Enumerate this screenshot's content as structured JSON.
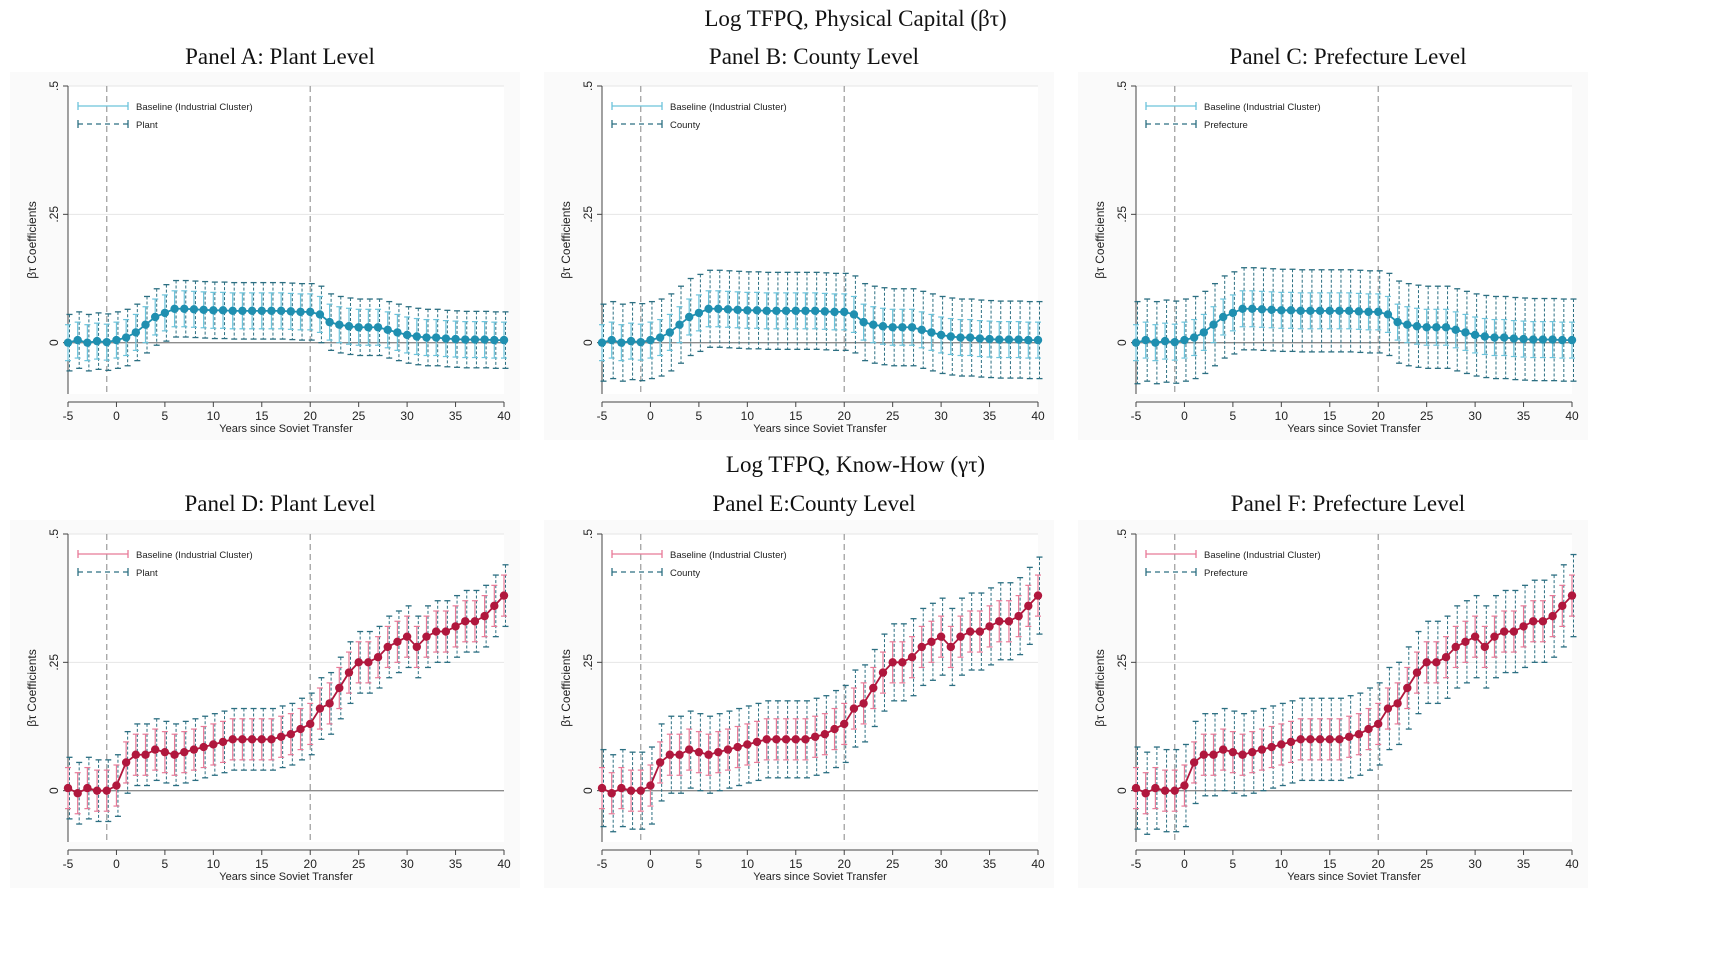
{
  "section_titles": {
    "top": "Log TFPQ, Physical Capital (βτ)",
    "bottom": "Log TFPQ, Know-How (γτ)"
  },
  "panels": [
    {
      "title": "Panel A: Plant Level",
      "series2_label": "Plant"
    },
    {
      "title": "Panel B: County Level",
      "series2_label": "County"
    },
    {
      "title": "Panel C: Prefecture Level",
      "series2_label": "Prefecture"
    },
    {
      "title": "Panel D: Plant Level",
      "series2_label": "Plant"
    },
    {
      "title": "Panel E:County Level",
      "series2_label": "County"
    },
    {
      "title": "Panel F: Prefecture Level",
      "series2_label": "Prefecture"
    }
  ],
  "colors": {
    "physical_capital": "#1f8fb0",
    "physical_capital_ci": "#6cc3db",
    "know_how": "#b0173d",
    "know_how_ci": "#e87a98",
    "alt_ci": "#2c6f82",
    "zero_line": "#8c8c8c",
    "vline": "#9a9a9a",
    "grid": "#e6e6e6"
  },
  "chart_data": [
    {
      "type": "line",
      "title": "Panel A: Plant Level",
      "xlabel": "Years since Soviet Transfer",
      "ylabel": "βτ Coefficients",
      "xlim": [
        -5,
        40
      ],
      "ylim": [
        -0.1,
        0.5
      ],
      "xticks": [
        "-5",
        "0",
        "5",
        "10",
        "15",
        "20",
        "25",
        "30",
        "35",
        "40"
      ],
      "yticks": [
        "0",
        ".25",
        ".5"
      ],
      "vlines": [
        -1,
        20
      ],
      "legend": "top-left",
      "x": [
        -5,
        -4,
        -3,
        -2,
        -1,
        0,
        1,
        2,
        3,
        4,
        5,
        6,
        7,
        8,
        9,
        10,
        11,
        12,
        13,
        14,
        15,
        16,
        17,
        18,
        19,
        20,
        21,
        22,
        23,
        24,
        25,
        26,
        27,
        28,
        29,
        30,
        31,
        32,
        33,
        34,
        35,
        36,
        37,
        38,
        39,
        40
      ],
      "series": [
        {
          "name": "Baseline (Industrial Cluster)",
          "values": [
            0.0,
            0.005,
            0.0,
            0.003,
            0.001,
            0.005,
            0.01,
            0.02,
            0.035,
            0.05,
            0.058,
            0.066,
            0.066,
            0.065,
            0.064,
            0.063,
            0.063,
            0.062,
            0.062,
            0.062,
            0.062,
            0.062,
            0.062,
            0.061,
            0.06,
            0.06,
            0.055,
            0.04,
            0.035,
            0.032,
            0.03,
            0.03,
            0.03,
            0.025,
            0.02,
            0.015,
            0.012,
            0.01,
            0.01,
            0.008,
            0.007,
            0.006,
            0.006,
            0.006,
            0.005,
            0.005
          ],
          "ci_halfwidth": 0.035
        },
        {
          "name": "Plant",
          "ci_halfwidth": 0.055
        }
      ]
    },
    {
      "type": "line",
      "title": "Panel B: County Level",
      "xlabel": "Years since Soviet Transfer",
      "ylabel": "βτ Coefficients",
      "xlim": [
        -5,
        40
      ],
      "ylim": [
        -0.1,
        0.5
      ],
      "xticks": [
        "-5",
        "0",
        "5",
        "10",
        "15",
        "20",
        "25",
        "30",
        "35",
        "40"
      ],
      "yticks": [
        "0",
        ".25",
        ".5"
      ],
      "vlines": [
        -1,
        20
      ],
      "legend": "top-left",
      "x": [
        -5,
        -4,
        -3,
        -2,
        -1,
        0,
        1,
        2,
        3,
        4,
        5,
        6,
        7,
        8,
        9,
        10,
        11,
        12,
        13,
        14,
        15,
        16,
        17,
        18,
        19,
        20,
        21,
        22,
        23,
        24,
        25,
        26,
        27,
        28,
        29,
        30,
        31,
        32,
        33,
        34,
        35,
        36,
        37,
        38,
        39,
        40
      ],
      "series": [
        {
          "name": "Baseline (Industrial Cluster)",
          "values": [
            0.0,
            0.005,
            0.0,
            0.003,
            0.001,
            0.005,
            0.01,
            0.02,
            0.035,
            0.05,
            0.058,
            0.066,
            0.066,
            0.065,
            0.064,
            0.063,
            0.063,
            0.062,
            0.062,
            0.062,
            0.062,
            0.062,
            0.062,
            0.061,
            0.06,
            0.06,
            0.055,
            0.04,
            0.035,
            0.032,
            0.03,
            0.03,
            0.03,
            0.025,
            0.02,
            0.015,
            0.012,
            0.01,
            0.01,
            0.008,
            0.007,
            0.006,
            0.006,
            0.006,
            0.005,
            0.005
          ],
          "ci_halfwidth": 0.035
        },
        {
          "name": "County",
          "ci_halfwidth": 0.075
        }
      ]
    },
    {
      "type": "line",
      "title": "Panel C: Prefecture Level",
      "xlabel": "Years since Soviet Transfer",
      "ylabel": "βτ Coefficients",
      "xlim": [
        -5,
        40
      ],
      "ylim": [
        -0.1,
        0.5
      ],
      "xticks": [
        "-5",
        "0",
        "5",
        "10",
        "15",
        "20",
        "25",
        "30",
        "35",
        "40"
      ],
      "yticks": [
        "0",
        ".25",
        ".5"
      ],
      "vlines": [
        -1,
        20
      ],
      "legend": "top-left",
      "x": [
        -5,
        -4,
        -3,
        -2,
        -1,
        0,
        1,
        2,
        3,
        4,
        5,
        6,
        7,
        8,
        9,
        10,
        11,
        12,
        13,
        14,
        15,
        16,
        17,
        18,
        19,
        20,
        21,
        22,
        23,
        24,
        25,
        26,
        27,
        28,
        29,
        30,
        31,
        32,
        33,
        34,
        35,
        36,
        37,
        38,
        39,
        40
      ],
      "series": [
        {
          "name": "Baseline (Industrial Cluster)",
          "values": [
            0.0,
            0.005,
            0.0,
            0.003,
            0.001,
            0.005,
            0.01,
            0.02,
            0.035,
            0.05,
            0.058,
            0.066,
            0.066,
            0.065,
            0.064,
            0.063,
            0.063,
            0.062,
            0.062,
            0.062,
            0.062,
            0.062,
            0.062,
            0.061,
            0.06,
            0.06,
            0.055,
            0.04,
            0.035,
            0.032,
            0.03,
            0.03,
            0.03,
            0.025,
            0.02,
            0.015,
            0.012,
            0.01,
            0.01,
            0.008,
            0.007,
            0.006,
            0.006,
            0.006,
            0.005,
            0.005
          ],
          "ci_halfwidth": 0.035
        },
        {
          "name": "Prefecture",
          "ci_halfwidth": 0.08
        }
      ]
    },
    {
      "type": "line",
      "title": "Panel D: Plant Level",
      "xlabel": "Years since Soviet Transfer",
      "ylabel": "βτ Coefficients",
      "xlim": [
        -5,
        40
      ],
      "ylim": [
        -0.1,
        0.5
      ],
      "xticks": [
        "-5",
        "0",
        "5",
        "10",
        "15",
        "20",
        "25",
        "30",
        "35",
        "40"
      ],
      "yticks": [
        "0",
        ".25",
        ".5"
      ],
      "vlines": [
        -1,
        20
      ],
      "legend": "top-left",
      "x": [
        -5,
        -4,
        -3,
        -2,
        -1,
        0,
        1,
        2,
        3,
        4,
        5,
        6,
        7,
        8,
        9,
        10,
        11,
        12,
        13,
        14,
        15,
        16,
        17,
        18,
        19,
        20,
        21,
        22,
        23,
        24,
        25,
        26,
        27,
        28,
        29,
        30,
        31,
        32,
        33,
        34,
        35,
        36,
        37,
        38,
        39,
        40
      ],
      "series": [
        {
          "name": "Baseline (Industrial Cluster)",
          "values": [
            0.005,
            -0.005,
            0.005,
            0.0,
            0.0,
            0.01,
            0.055,
            0.07,
            0.07,
            0.08,
            0.075,
            0.07,
            0.075,
            0.08,
            0.085,
            0.09,
            0.095,
            0.1,
            0.1,
            0.1,
            0.1,
            0.1,
            0.105,
            0.11,
            0.12,
            0.13,
            0.16,
            0.17,
            0.2,
            0.23,
            0.25,
            0.25,
            0.26,
            0.28,
            0.29,
            0.3,
            0.28,
            0.3,
            0.31,
            0.31,
            0.32,
            0.33,
            0.33,
            0.34,
            0.36,
            0.38
          ],
          "ci_halfwidth": 0.04
        },
        {
          "name": "Plant",
          "ci_halfwidth": 0.06
        }
      ]
    },
    {
      "type": "line",
      "title": "Panel E:County Level",
      "xlabel": "Years since Soviet Transfer",
      "ylabel": "βτ Coefficients",
      "xlim": [
        -5,
        40
      ],
      "ylim": [
        -0.1,
        0.5
      ],
      "xticks": [
        "-5",
        "0",
        "5",
        "10",
        "15",
        "20",
        "25",
        "30",
        "35",
        "40"
      ],
      "yticks": [
        "0",
        ".25",
        ".5"
      ],
      "vlines": [
        -1,
        20
      ],
      "legend": "top-left",
      "x": [
        -5,
        -4,
        -3,
        -2,
        -1,
        0,
        1,
        2,
        3,
        4,
        5,
        6,
        7,
        8,
        9,
        10,
        11,
        12,
        13,
        14,
        15,
        16,
        17,
        18,
        19,
        20,
        21,
        22,
        23,
        24,
        25,
        26,
        27,
        28,
        29,
        30,
        31,
        32,
        33,
        34,
        35,
        36,
        37,
        38,
        39,
        40
      ],
      "series": [
        {
          "name": "Baseline (Industrial Cluster)",
          "values": [
            0.005,
            -0.005,
            0.005,
            0.0,
            0.0,
            0.01,
            0.055,
            0.07,
            0.07,
            0.08,
            0.075,
            0.07,
            0.075,
            0.08,
            0.085,
            0.09,
            0.095,
            0.1,
            0.1,
            0.1,
            0.1,
            0.1,
            0.105,
            0.11,
            0.12,
            0.13,
            0.16,
            0.17,
            0.2,
            0.23,
            0.25,
            0.25,
            0.26,
            0.28,
            0.29,
            0.3,
            0.28,
            0.3,
            0.31,
            0.31,
            0.32,
            0.33,
            0.33,
            0.34,
            0.36,
            0.38
          ],
          "ci_halfwidth": 0.04
        },
        {
          "name": "County",
          "ci_halfwidth": 0.075
        }
      ]
    },
    {
      "type": "line",
      "title": "Panel F: Prefecture Level",
      "xlabel": "Years since Soviet Transfer",
      "ylabel": "βτ Coefficients",
      "xlim": [
        -5,
        40
      ],
      "ylim": [
        -0.1,
        0.5
      ],
      "xticks": [
        "-5",
        "0",
        "5",
        "10",
        "15",
        "20",
        "25",
        "30",
        "35",
        "40"
      ],
      "yticks": [
        "0",
        ".25",
        ".5"
      ],
      "vlines": [
        -1,
        20
      ],
      "legend": "top-left",
      "x": [
        -5,
        -4,
        -3,
        -2,
        -1,
        0,
        1,
        2,
        3,
        4,
        5,
        6,
        7,
        8,
        9,
        10,
        11,
        12,
        13,
        14,
        15,
        16,
        17,
        18,
        19,
        20,
        21,
        22,
        23,
        24,
        25,
        26,
        27,
        28,
        29,
        30,
        31,
        32,
        33,
        34,
        35,
        36,
        37,
        38,
        39,
        40
      ],
      "series": [
        {
          "name": "Baseline (Industrial Cluster)",
          "values": [
            0.005,
            -0.005,
            0.005,
            0.0,
            0.0,
            0.01,
            0.055,
            0.07,
            0.07,
            0.08,
            0.075,
            0.07,
            0.075,
            0.08,
            0.085,
            0.09,
            0.095,
            0.1,
            0.1,
            0.1,
            0.1,
            0.1,
            0.105,
            0.11,
            0.12,
            0.13,
            0.16,
            0.17,
            0.2,
            0.23,
            0.25,
            0.25,
            0.26,
            0.28,
            0.29,
            0.3,
            0.28,
            0.3,
            0.31,
            0.31,
            0.32,
            0.33,
            0.33,
            0.34,
            0.36,
            0.38
          ],
          "ci_halfwidth": 0.04
        },
        {
          "name": "Prefecture",
          "ci_halfwidth": 0.08
        }
      ]
    }
  ]
}
